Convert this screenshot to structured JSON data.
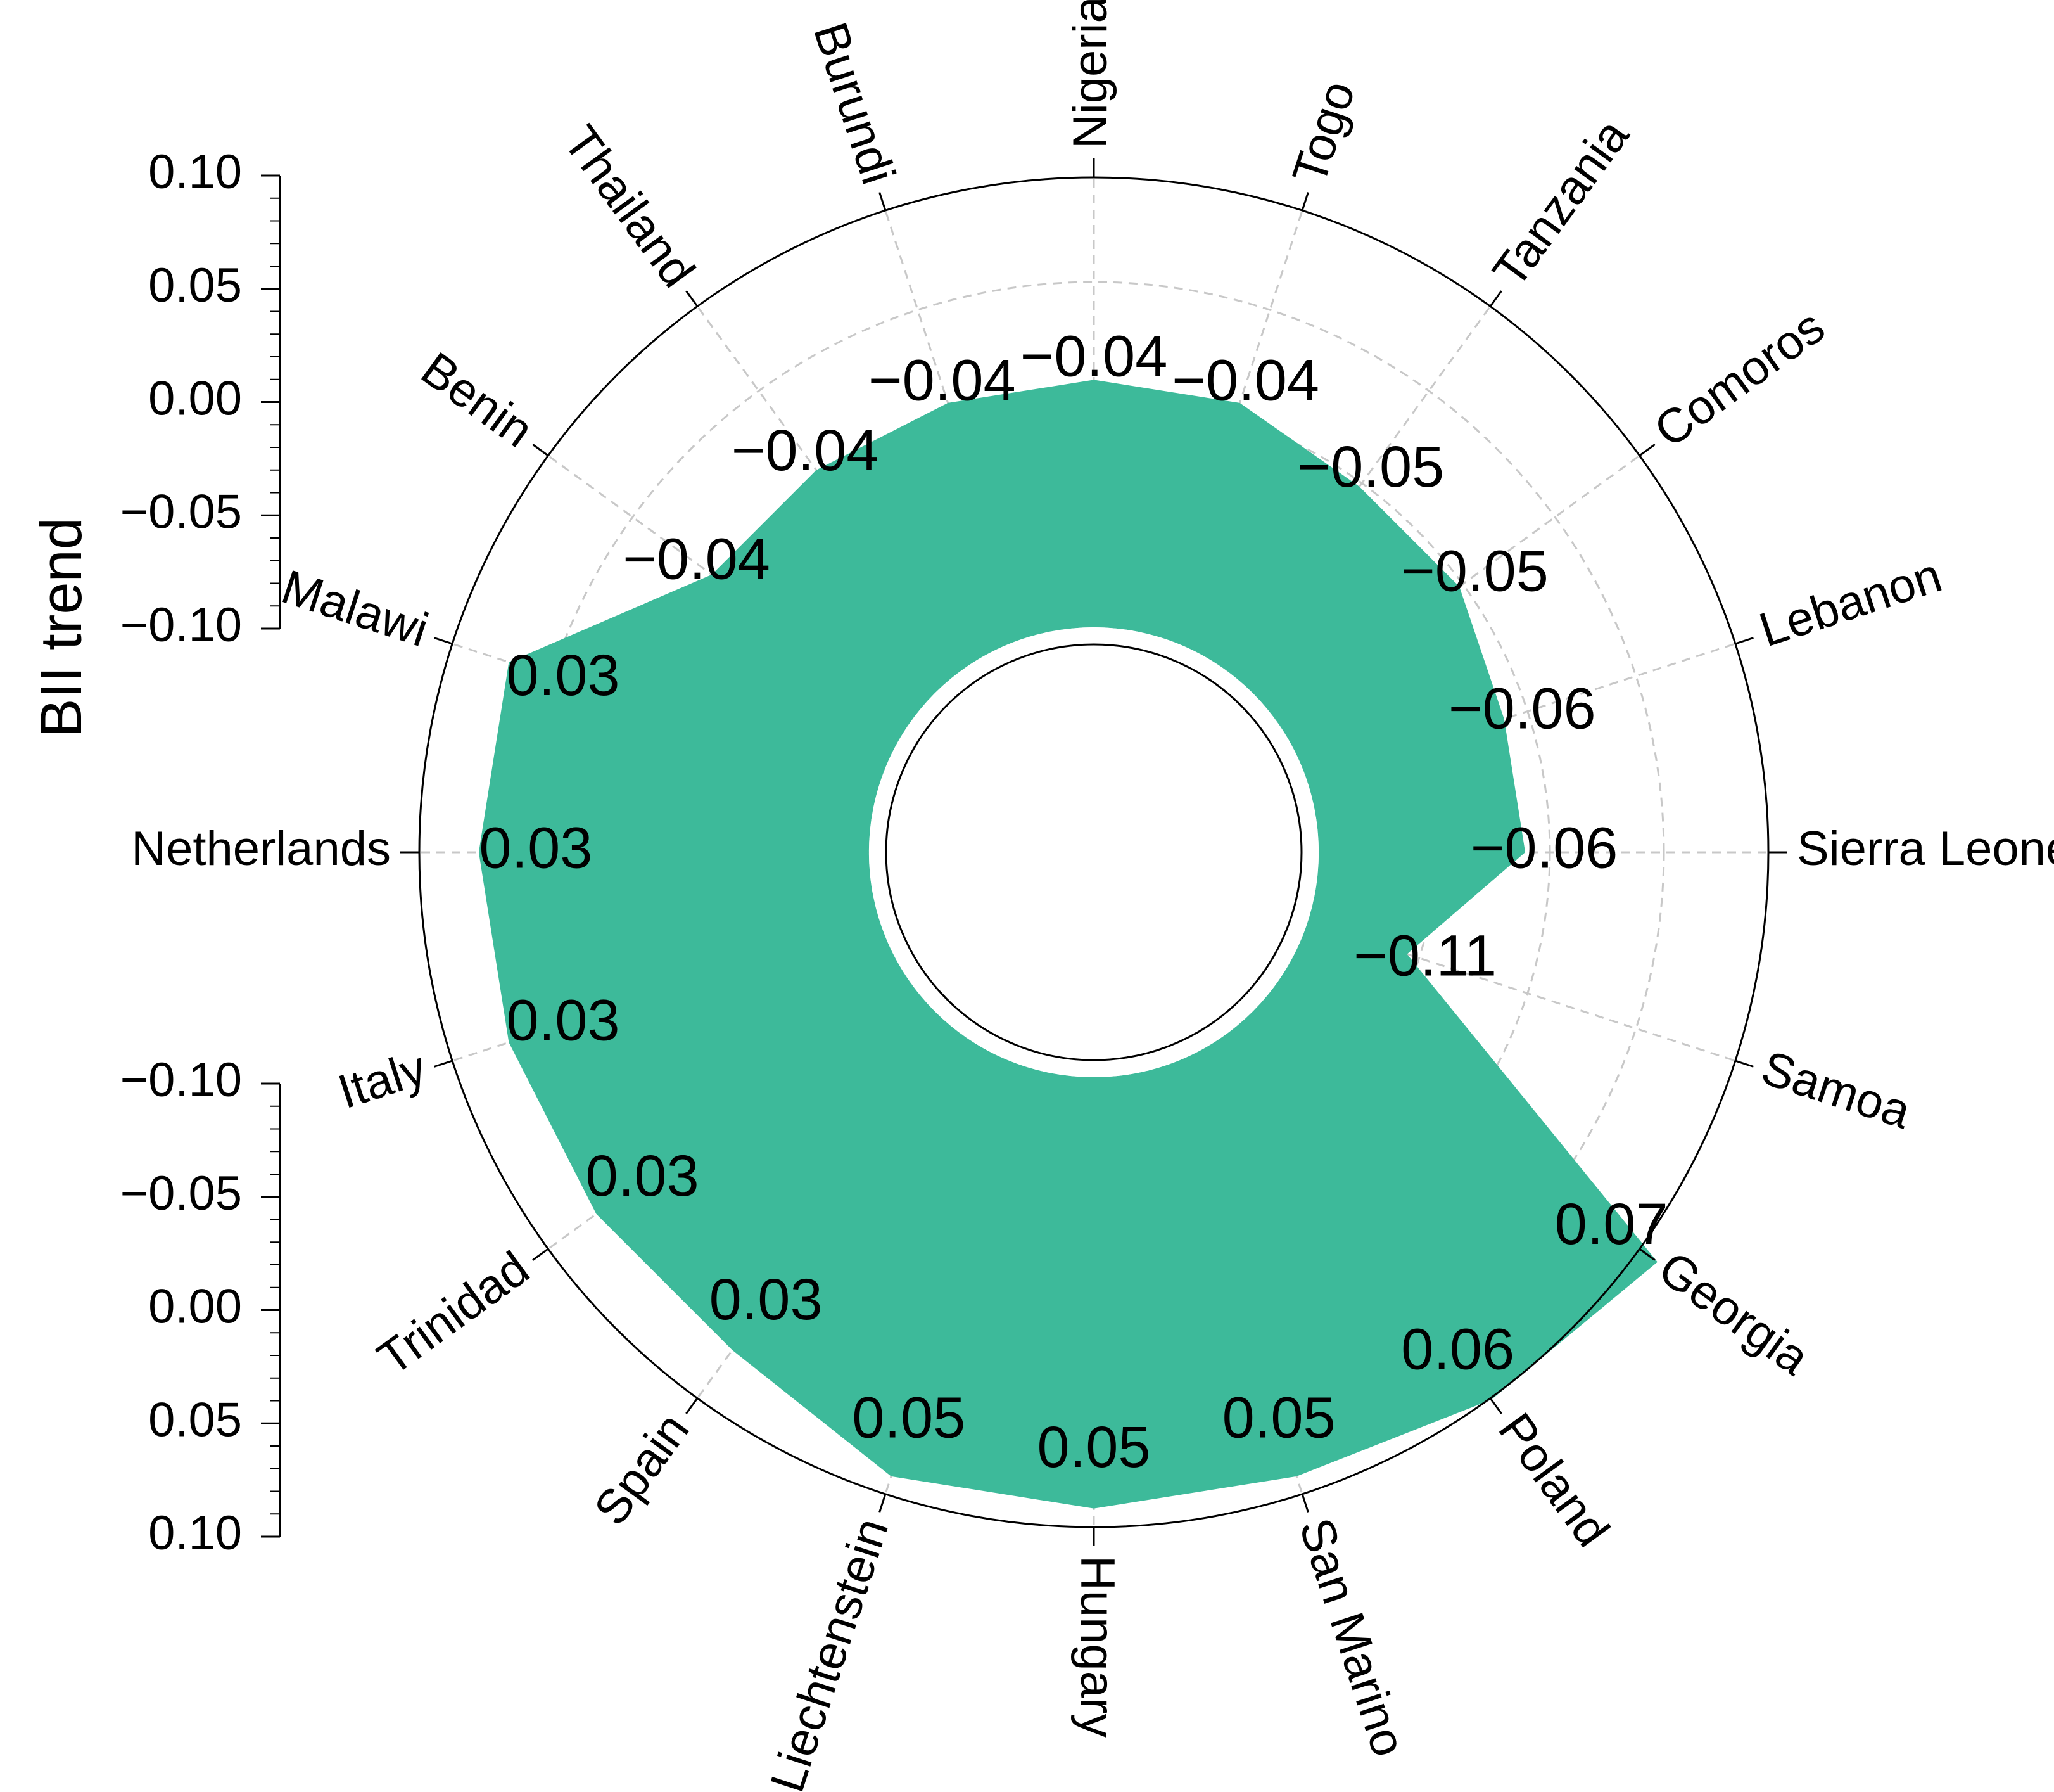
{
  "chart_data": {
    "type": "radial-area",
    "ylabel": "BII trend",
    "fill_color": "#3dba9a",
    "grid": "dashed-rings-and-spokes",
    "categories": [
      "Nigeria",
      "Togo",
      "Tanzania",
      "Comoros",
      "Lebanon",
      "Sierra Leone",
      "Samoa",
      "Georgia",
      "Poland",
      "San Marino",
      "Hungary",
      "Liechtenstein",
      "Spain",
      "Trinidad",
      "Italy",
      "Netherlands",
      "Malawi",
      "Benin",
      "Thailand",
      "Burundi"
    ],
    "values": [
      -0.04,
      -0.04,
      -0.05,
      -0.05,
      -0.06,
      -0.06,
      -0.11,
      0.07,
      0.06,
      0.05,
      0.05,
      0.05,
      0.03,
      0.03,
      0.03,
      0.03,
      0.03,
      -0.04,
      -0.04,
      -0.04
    ],
    "value_labels": [
      "−0.04",
      "−0.04",
      "−0.05",
      "−0.05",
      "−0.06",
      "−0.06",
      "−0.11",
      "0.07",
      "0.06",
      "0.05",
      "0.05",
      "0.05",
      "0.03",
      "0.03",
      "0.03",
      "0.03",
      "0.03",
      "−0.04",
      "−0.04",
      "−0.04"
    ],
    "upper_axis": {
      "ylim": [
        -0.1,
        0.1
      ],
      "tick_labels": [
        "0.10",
        "0.05",
        "0.00",
        "−0.05",
        "−0.10"
      ]
    },
    "lower_axis": {
      "ylim": [
        -0.1,
        0.1
      ],
      "tick_labels": [
        "−0.10",
        "−0.05",
        "0.00",
        "0.05",
        "0.10"
      ]
    }
  }
}
